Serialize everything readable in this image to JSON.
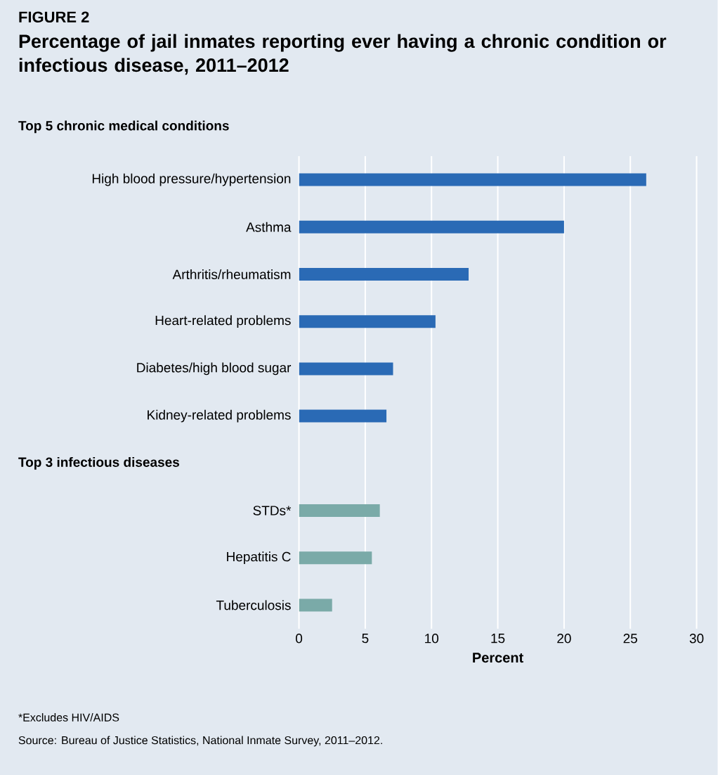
{
  "chart_data": {
    "type": "bar",
    "orientation": "horizontal",
    "title": "FIGURE 2",
    "subtitle": "Percentage of jail inmates reporting ever having a chronic condition or infectious disease, 2011–2012",
    "xlabel": "Percent",
    "categories": [
      "High blood pressure/hypertension",
      "Asthma",
      "Arthritis/rheumatism",
      "Heart-related problems",
      "Diabetes/high blood sugar",
      "Kidney-related problems",
      null,
      "STDs*",
      "Hepatitis C",
      "Tuberculosis"
    ],
    "series": [
      {
        "color": "#2a6ab5",
        "values": [
          26.2,
          20.0,
          12.8,
          10.3,
          7.1,
          6.6,
          null,
          null,
          null,
          null
        ]
      },
      {
        "color": "#7aaaa8",
        "values": [
          null,
          null,
          null,
          null,
          null,
          null,
          null,
          6.1,
          5.5,
          2.5
        ]
      }
    ],
    "xlim": [
      0,
      30
    ],
    "xticks": [
      0,
      5,
      10,
      15,
      20,
      25,
      30
    ],
    "grid": "x",
    "annotations": [
      "Top 5 chronic medical conditions",
      "Top 3 infectious diseases",
      "*Excludes HIV/AIDS",
      "Source: Bureau of Justice Statistics, National Inmate Survey, 2011–2012."
    ]
  }
}
